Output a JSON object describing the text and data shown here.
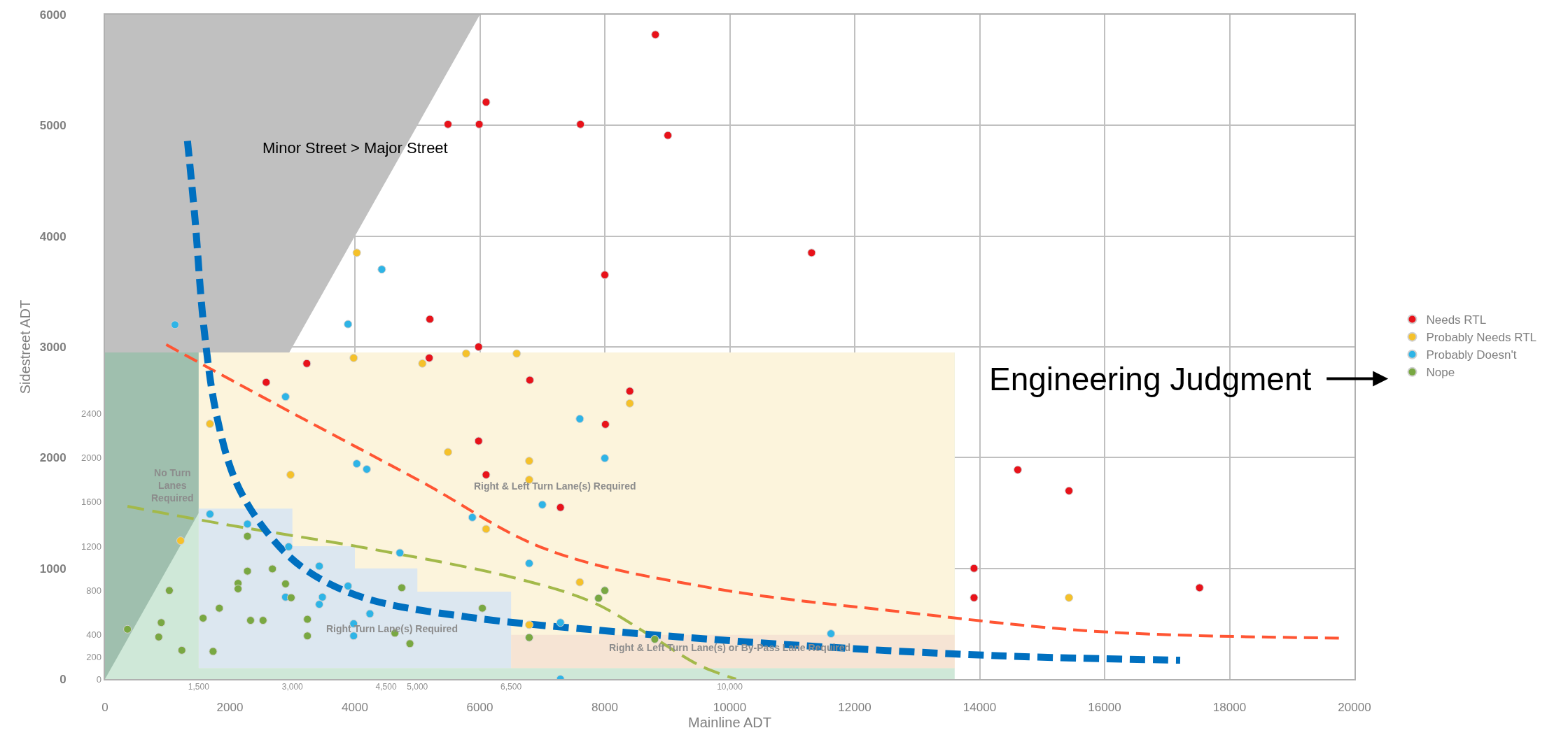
{
  "chart_data": {
    "type": "scatter",
    "xlabel": "Mainline ADT",
    "ylabel": "Sidestreet ADT",
    "xlim": [
      0,
      20000
    ],
    "xticks": [
      0,
      2000,
      4000,
      6000,
      8000,
      10000,
      12000,
      14000,
      16000,
      18000,
      20000
    ],
    "ylim": [
      0,
      6000
    ],
    "yticks": [
      0,
      1000,
      2000,
      3000,
      4000,
      5000,
      6000
    ],
    "x2lim": [
      0,
      20000
    ],
    "x2ticks": [
      {
        "value": 1500,
        "label": "1,500"
      },
      {
        "value": 3000,
        "label": "3,000"
      },
      {
        "value": 4500,
        "label": "4,500"
      },
      {
        "value": 5000,
        "label": "5,000"
      },
      {
        "value": 6500,
        "label": "6,500"
      },
      {
        "value": 10000,
        "label": "10,000"
      }
    ],
    "y2lim": [
      0,
      6000
    ],
    "y2ticks": [
      0,
      200,
      400,
      800,
      1200,
      1600,
      2000,
      2400
    ],
    "grid": true,
    "legend": "right",
    "marker": "circle",
    "series": [
      {
        "type": "area",
        "marker": "none",
        "color": "#c0c0c0",
        "x": [
          0,
          0,
          6000
        ],
        "values": [
          0,
          6000,
          6000
        ]
      },
      {
        "type": "area",
        "marker": "none",
        "color": "#cfe8d8",
        "x": [
          0,
          0,
          13600,
          13600
        ],
        "values": [
          0,
          2950,
          2950,
          0
        ]
      },
      {
        "type": "area",
        "marker": "none",
        "color": "#9fbfae",
        "x": [
          0,
          0,
          1500,
          1500
        ],
        "values": [
          0,
          2950,
          2950,
          1500
        ]
      },
      {
        "type": "area",
        "marker": "none",
        "color": "#fcf4dc",
        "x": [
          1500,
          1500,
          13600,
          13600
        ],
        "values": [
          100,
          2950,
          2950,
          100
        ]
      },
      {
        "type": "area",
        "marker": "none",
        "color": "#dce7f0",
        "x": [
          1500,
          1500,
          3000,
          3000,
          4000,
          4000,
          5000,
          5000,
          6500,
          6500
        ],
        "values": [
          100,
          1540,
          1540,
          1200,
          1200,
          1000,
          1000,
          790,
          790,
          100
        ]
      },
      {
        "type": "area",
        "marker": "none",
        "color": "#f6e4d4",
        "x": [
          6500,
          6500,
          13600,
          13600
        ],
        "values": [
          100,
          400,
          400,
          100
        ]
      },
      {
        "type": "line",
        "marker": "none",
        "line_style": "dashed",
        "color": "#ff5533",
        "x": [
          980,
          2710,
          5040,
          7050,
          9680,
          12780,
          15880,
          19750
        ],
        "values": [
          3020,
          2490,
          1790,
          1175,
          825,
          605,
          430,
          370
        ]
      },
      {
        "type": "line",
        "marker": "none",
        "line_style": "dashed",
        "color": "#a3b94a",
        "x": [
          360,
          1940,
          4260,
          6580,
          7820,
          8750,
          9530,
          10100
        ],
        "values": [
          1560,
          1395,
          1175,
          910,
          690,
          385,
          120,
          0
        ]
      },
      {
        "type": "line",
        "marker": "none",
        "line_style": "dashed",
        "color": "#0070c0",
        "x": [
          1320,
          1440,
          1580,
          1780,
          2090,
          2560,
          3180,
          4110,
          5810,
          8130,
          11230,
          14330,
          17210
        ],
        "values": [
          4860,
          4160,
          3190,
          2400,
          1790,
          1350,
          1000,
          740,
          560,
          430,
          300,
          210,
          170
        ]
      },
      {
        "name": "Needs RTL",
        "color": "#e8121a",
        "x": [
          8810,
          6100,
          5490,
          5990,
          7610,
          9010,
          11310,
          8000,
          5200,
          3230,
          5190,
          5980,
          2580,
          5980,
          6100,
          6800,
          8400,
          8010,
          7290,
          13910,
          13910,
          14610,
          15430,
          17520
        ],
        "values": [
          5820,
          5210,
          5010,
          5010,
          5010,
          4910,
          3850,
          3650,
          3250,
          2850,
          2900,
          3000,
          2680,
          2150,
          1845,
          2700,
          2600,
          2300,
          1550,
          1000,
          735,
          1890,
          1700,
          825
        ]
      },
      {
        "name": "Probably Needs RTL",
        "color": "#f5c12a",
        "x": [
          4030,
          3980,
          5080,
          5780,
          1680,
          2970,
          5490,
          6100,
          1210,
          6590,
          8400,
          6790,
          6790,
          7600,
          6790,
          15430
        ],
        "values": [
          3850,
          2900,
          2850,
          2940,
          2305,
          1845,
          2050,
          1355,
          1250,
          2940,
          2490,
          1970,
          1800,
          875,
          490,
          735
        ]
      },
      {
        "name": "Probably Doesn't",
        "color": "#2eb4e6",
        "x": [
          1120,
          4430,
          3890,
          1680,
          2280,
          2940,
          3430,
          3890,
          2890,
          3480,
          3430,
          4240,
          3980,
          3980,
          2890,
          4030,
          4190,
          5880,
          4720,
          7600,
          8000,
          7000,
          6790,
          7290,
          7290,
          11620
        ],
        "values": [
          3200,
          3700,
          3205,
          1490,
          1400,
          1195,
          1020,
          840,
          740,
          740,
          675,
          590,
          500,
          390,
          2550,
          1945,
          1895,
          1460,
          1140,
          2350,
          1995,
          1575,
          1045,
          510,
          0,
          410
        ]
      },
      {
        "name": "Nope",
        "color": "#79a842",
        "x": [
          360,
          900,
          860,
          1230,
          1030,
          1570,
          1730,
          1830,
          2280,
          2280,
          2130,
          2130,
          2330,
          2530,
          2680,
          2890,
          2980,
          3240,
          3240,
          4640,
          4880,
          4750,
          6040,
          6790,
          8000,
          7900,
          8800
        ],
        "values": [
          450,
          510,
          380,
          260,
          800,
          550,
          250,
          640,
          1290,
          975,
          865,
          815,
          530,
          530,
          995,
          860,
          735,
          540,
          390,
          415,
          320,
          825,
          640,
          375,
          800,
          730,
          360
        ]
      }
    ],
    "annotations": [
      "Minor Street > Major Street",
      "Engineering Judgment",
      "Right & Left Turn Lane(s) Required",
      "No Turn\nLanes\nRequired",
      "Right Turn Lane(s) Required",
      "Right & Left Turn Lane(s) or By-Pass Lane Required"
    ]
  }
}
